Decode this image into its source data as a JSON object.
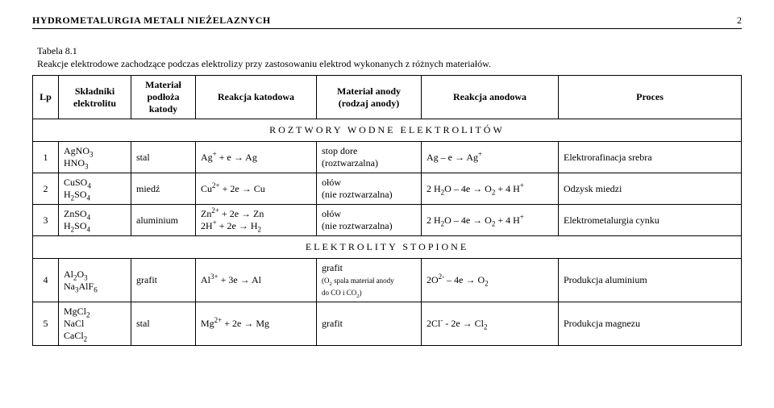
{
  "header": {
    "title": "HYDROMETALURGIA  METALI  NIEŻELAZNYCH",
    "page": "2"
  },
  "caption": {
    "label": "Tabela 8.1",
    "text": "Reakcje elektrodowe zachodzące podczas elektrolizy przy zastosowaniu elektrod wykonanych z różnych materiałów."
  },
  "columns": {
    "lp": "Lp",
    "skladniki": "Składniki elektrolitu",
    "material_katody": "Materiał podłoża katody",
    "reakcja_katodowa": "Reakcja katodowa",
    "material_anody": "Materiał anody (rodzaj anody)",
    "reakcja_anodowa": "Reakcja anodowa",
    "proces": "Proces"
  },
  "sections": {
    "aqueous": "ROZTWORY   WODNE   ELEKTROLITÓW",
    "molten": "ELEKTROLITY   STOPIONE"
  },
  "rows": [
    {
      "section": "aqueous",
      "lp": "1",
      "skladniki_html": "AgNO<sub>3</sub><br>HNO<sub>3</sub>",
      "material_katody": "stal",
      "reakcja_katodowa_html": "Ag<sup>+</sup> + e → Ag",
      "material_anody_html": "stop dore<br>(roztwarzalna)",
      "reakcja_anodowa_html": "Ag – e → Ag<sup>+</sup>",
      "proces": "Elektrorafinacja srebra"
    },
    {
      "section": "aqueous",
      "lp": "2",
      "skladniki_html": "CuSO<sub>4</sub><br>H<sub>2</sub>SO<sub>4</sub>",
      "material_katody": "miedź",
      "reakcja_katodowa_html": "Cu<sup>2+</sup> + 2e → Cu",
      "material_anody_html": "ołów<br>(nie roztwarzalna)",
      "reakcja_anodowa_html": "2 H<sub>2</sub>O – 4e → O<sub>2</sub> + 4 H<sup>+</sup>",
      "proces": "Odzysk miedzi"
    },
    {
      "section": "aqueous",
      "lp": "3",
      "skladniki_html": "ZnSO<sub>4</sub><br>H<sub>2</sub>SO<sub>4</sub>",
      "material_katody": "aluminium",
      "reakcja_katodowa_html": "Zn<sup>2+</sup> + 2e → Zn<br>2H<sup>+</sup> + 2e → H<sub>2</sub>",
      "material_anody_html": "ołów<br>(nie roztwarzalna)",
      "reakcja_anodowa_html": "2 H<sub>2</sub>O – 4e → O<sub>2</sub> + 4 H<sup>+</sup>",
      "proces": "Elektrometalurgia cynku"
    },
    {
      "section": "molten",
      "lp": "4",
      "skladniki_html": "Al<sub>2</sub>O<sub>3</sub><br>Na<sub>3</sub>AlF<sub>6</sub>",
      "material_katody": "grafit",
      "reakcja_katodowa_html": "Al<sup>3+</sup> + 3e → Al",
      "material_anody_html": "grafit<br><span style=\"font-size:9px\">(O<sub>2</sub> spala materiał anody<br>do CO i CO<sub>2</sub>)</span>",
      "reakcja_anodowa_html": "2O<sup>2-</sup> – 4e → O<sub>2</sub>",
      "proces": "Produkcja aluminium"
    },
    {
      "section": "molten",
      "lp": "5",
      "skladniki_html": "MgCl<sub>2</sub><br>NaCl<br>CaCl<sub>2</sub>",
      "material_katody": "stal",
      "reakcja_katodowa_html": "Mg<sup>2+</sup> + 2e → Mg",
      "material_anody_html": "grafit",
      "reakcja_anodowa_html": "2Cl<sup>-</sup> - 2e → Cl<sub>2</sub>",
      "proces": "Produkcja magnezu"
    }
  ]
}
